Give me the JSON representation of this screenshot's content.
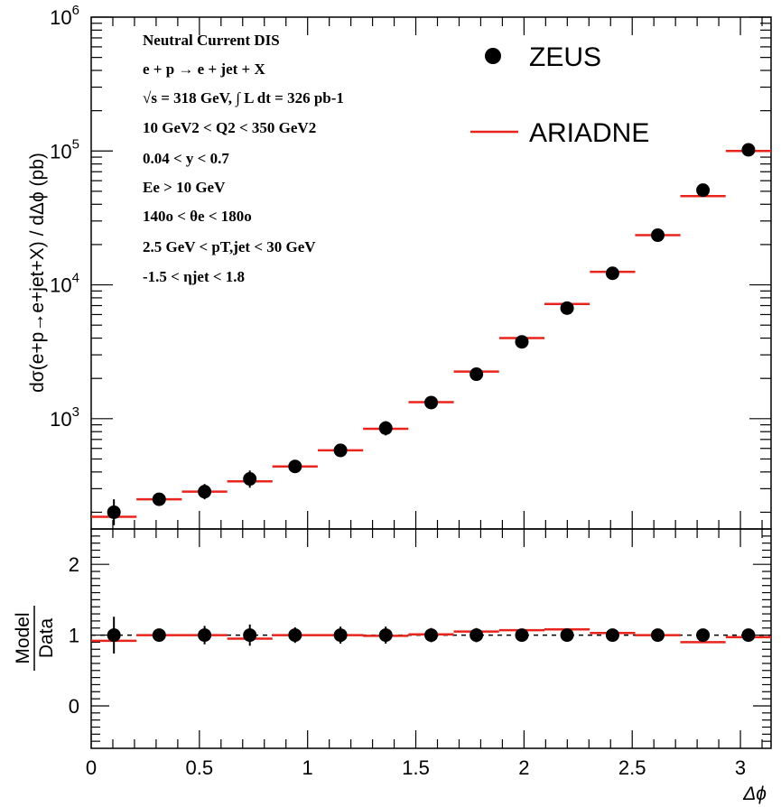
{
  "chart_data": [
    {
      "type": "scatter",
      "panel": "main",
      "ylabel": "dσ(e+p→e+jet+X) / dΔϕ (pb)",
      "xlabel": "",
      "yscale": "log",
      "xlim": [
        0,
        3.1416
      ],
      "ylim": [
        150,
        1000000
      ],
      "y_tick_labels": [
        {
          "value": 1000,
          "base": "10",
          "exp": "3"
        },
        {
          "value": 10000,
          "base": "10",
          "exp": "4"
        },
        {
          "value": 100000,
          "base": "10",
          "exp": "5"
        },
        {
          "value": 1000000,
          "base": "10",
          "exp": "6"
        }
      ],
      "grid": false,
      "legend_position": "top-right",
      "series": [
        {
          "name": "ZEUS",
          "kind": "points",
          "color": "#000000",
          "x": [
            0.105,
            0.314,
            0.524,
            0.733,
            0.942,
            1.152,
            1.361,
            1.571,
            1.78,
            1.99,
            2.199,
            2.409,
            2.618,
            2.827,
            3.037
          ],
          "y": [
            200,
            250,
            285,
            355,
            440,
            580,
            850,
            1320,
            2150,
            3750,
            6700,
            12200,
            23500,
            51000,
            102000
          ],
          "err_low": [
            40,
            22,
            35,
            50,
            45,
            62,
            100,
            120,
            190,
            240,
            430,
            700,
            1300,
            3000,
            5000
          ],
          "err_high": [
            50,
            25,
            40,
            55,
            50,
            70,
            110,
            130,
            210,
            260,
            470,
            800,
            1500,
            3400,
            5600
          ]
        },
        {
          "name": "ARIADNE",
          "kind": "step",
          "color": "#e8241c",
          "x": [
            0.105,
            0.314,
            0.524,
            0.733,
            0.942,
            1.152,
            1.361,
            1.571,
            1.78,
            1.99,
            2.199,
            2.409,
            2.618,
            2.827,
            3.037
          ],
          "y": [
            185,
            250,
            285,
            340,
            440,
            580,
            840,
            1330,
            2250,
            4000,
            7200,
            12500,
            23500,
            46000,
            100000
          ],
          "bin_width": 0.2094
        }
      ],
      "annotations": [
        "Neutral Current DIS",
        "e + p → e + jet + X",
        "√s = 318 GeV, ∫ L dt = 326 pb-1",
        "10 GeV2 < Q2 < 350 GeV2",
        "0.04 < y < 0.7",
        "Ee > 10 GeV",
        "140o < θe < 180o",
        "2.5 GeV < pT,jet < 30 GeV",
        "-1.5 < ηjet < 1.8"
      ]
    },
    {
      "type": "scatter",
      "panel": "ratio",
      "ylabel_numerator": "Model",
      "ylabel_denominator": "Data",
      "xlabel": "Δϕ",
      "xlim": [
        0,
        3.1416
      ],
      "ylim": [
        -0.6,
        2.5
      ],
      "x_ticks": [
        "0",
        "0.5",
        "1",
        "1.5",
        "2",
        "2.5",
        "3"
      ],
      "y_ticks": [
        "0",
        "1",
        "2"
      ],
      "reference_line": 1,
      "series": [
        {
          "name": "ZEUS",
          "kind": "points",
          "color": "#000000",
          "x": [
            0.105,
            0.314,
            0.524,
            0.733,
            0.942,
            1.152,
            1.361,
            1.571,
            1.78,
            1.99,
            2.199,
            2.409,
            2.618,
            2.827,
            3.037
          ],
          "y": [
            1.0,
            1.0,
            1.0,
            1.0,
            1.0,
            1.0,
            1.0,
            1.0,
            1.0,
            1.0,
            1.0,
            1.0,
            1.0,
            1.0,
            1.0
          ],
          "err": [
            0.26,
            0.09,
            0.13,
            0.15,
            0.11,
            0.12,
            0.12,
            0.1,
            0.1,
            0.07,
            0.07,
            0.06,
            0.06,
            0.06,
            0.05
          ]
        },
        {
          "name": "ARIADNE",
          "kind": "step",
          "color": "#e8241c",
          "x": [
            0.105,
            0.314,
            0.524,
            0.733,
            0.942,
            1.152,
            1.361,
            1.571,
            1.78,
            1.99,
            2.199,
            2.409,
            2.618,
            2.827,
            3.037
          ],
          "y": [
            0.92,
            1.0,
            1.0,
            0.95,
            1.0,
            1.0,
            0.99,
            1.01,
            1.05,
            1.07,
            1.08,
            1.03,
            1.0,
            0.9,
            0.97
          ],
          "bin_width": 0.2094
        }
      ]
    }
  ]
}
